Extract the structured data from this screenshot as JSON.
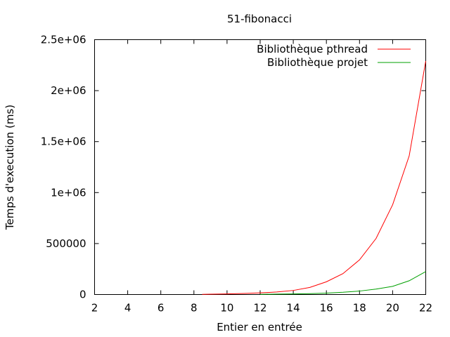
{
  "chart_data": {
    "type": "line",
    "title": "51-fibonacci",
    "xlabel": "Entier en entrée",
    "ylabel": "Temps d'execution (ms)",
    "xlim": [
      2,
      22
    ],
    "ylim": [
      0,
      2500000
    ],
    "grid": false,
    "legend_position": "top-right",
    "x_ticks": [
      2,
      4,
      6,
      8,
      10,
      12,
      14,
      16,
      18,
      20,
      22
    ],
    "x_tick_labels": [
      "2",
      "4",
      "6",
      "8",
      "10",
      "12",
      "14",
      "16",
      "18",
      "20",
      "22"
    ],
    "y_ticks": [
      0,
      500000,
      1000000,
      1500000,
      2000000,
      2500000
    ],
    "y_tick_labels": [
      "0",
      "500000",
      "1e+06",
      "1.5e+06",
      "2e+06",
      "2.5e+06"
    ],
    "series": [
      {
        "name": "Bibliothèque pthread",
        "color": "#ff0000",
        "x": [
          8.5,
          9,
          10,
          11,
          12,
          13,
          14,
          15,
          16,
          17,
          18,
          19,
          20,
          21,
          22
        ],
        "y": [
          2000,
          3000,
          6000,
          10000,
          16000,
          25000,
          40000,
          70000,
          125000,
          205000,
          340000,
          550000,
          880000,
          1360000,
          2290000
        ]
      },
      {
        "name": "Bibliothèque projet",
        "color": "#00a000",
        "x": [
          12,
          13,
          14,
          15,
          16,
          17,
          18,
          19,
          20,
          21,
          22
        ],
        "y": [
          2000,
          4000,
          6000,
          9000,
          14000,
          22000,
          34000,
          53000,
          80000,
          135000,
          225000
        ]
      }
    ]
  }
}
